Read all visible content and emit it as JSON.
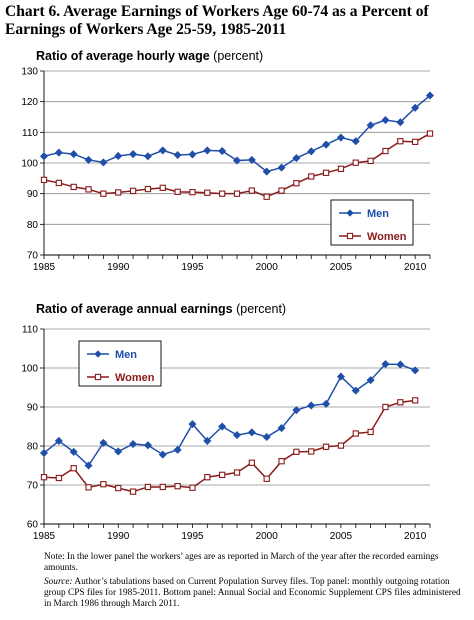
{
  "title": "Chart 6. Average Earnings of Workers Age 60-74 as a Percent of Earnings of Workers Age 25-59, 1985-2011",
  "colors": {
    "men": "#1f4fa8",
    "women": "#8b1a1a"
  },
  "chart_data": [
    {
      "type": "line",
      "title": "Ratio of average hourly wage",
      "title_unit": "(percent)",
      "x": [
        1985,
        1986,
        1987,
        1988,
        1989,
        1990,
        1991,
        1992,
        1993,
        1994,
        1995,
        1996,
        1997,
        1998,
        1999,
        2000,
        2001,
        2002,
        2003,
        2004,
        2005,
        2006,
        2007,
        2008,
        2009,
        2010,
        2011
      ],
      "xticks": [
        1985,
        1990,
        1995,
        2000,
        2005,
        2010
      ],
      "ylim": [
        70,
        130
      ],
      "yticks": [
        70,
        80,
        90,
        100,
        110,
        120,
        130
      ],
      "legend_position": "bottom-right",
      "series": [
        {
          "name": "Men",
          "marker": "filled-diamond",
          "values": [
            102.2,
            103.4,
            102.9,
            101.0,
            100.2,
            102.3,
            102.9,
            102.2,
            104.1,
            102.6,
            102.8,
            104.1,
            103.9,
            100.8,
            101.0,
            97.2,
            98.5,
            101.6,
            103.8,
            106.0,
            108.3,
            107.1,
            112.3,
            114.0,
            113.3,
            118.0,
            122.0
          ]
        },
        {
          "name": "Women",
          "marker": "hollow-square",
          "values": [
            94.5,
            93.5,
            92.2,
            91.4,
            90.0,
            90.4,
            90.9,
            91.5,
            91.9,
            90.6,
            90.5,
            90.3,
            90.0,
            90.0,
            91.0,
            89.0,
            91.0,
            93.4,
            95.6,
            96.8,
            98.1,
            100.1,
            100.7,
            103.9,
            107.1,
            106.9,
            109.6
          ]
        }
      ]
    },
    {
      "type": "line",
      "title": "Ratio of average annual earnings",
      "title_unit": "(percent)",
      "x": [
        1985,
        1986,
        1987,
        1988,
        1989,
        1990,
        1991,
        1992,
        1993,
        1994,
        1995,
        1996,
        1997,
        1998,
        1999,
        2000,
        2001,
        2002,
        2003,
        2004,
        2005,
        2006,
        2007,
        2008,
        2009,
        2010
      ],
      "xticks": [
        1985,
        1990,
        1995,
        2000,
        2005,
        2010
      ],
      "ylim": [
        60,
        110
      ],
      "yticks": [
        60,
        70,
        80,
        90,
        100,
        110
      ],
      "legend_position": "top-left",
      "series": [
        {
          "name": "Men",
          "marker": "filled-diamond",
          "values": [
            78.2,
            81.3,
            78.5,
            75.0,
            80.8,
            78.6,
            80.5,
            80.2,
            77.8,
            79.0,
            85.6,
            81.3,
            85.0,
            82.8,
            83.5,
            82.3,
            84.6,
            89.2,
            90.4,
            90.8,
            97.8,
            94.2,
            96.9,
            101.0,
            100.9,
            99.4
          ]
        },
        {
          "name": "Women",
          "marker": "hollow-square",
          "values": [
            72.0,
            71.8,
            74.3,
            69.4,
            70.2,
            69.2,
            68.3,
            69.5,
            69.5,
            69.7,
            69.3,
            72.0,
            72.6,
            73.2,
            75.7,
            71.6,
            76.1,
            78.5,
            78.6,
            79.8,
            80.1,
            83.2,
            83.6,
            90.0,
            91.2,
            91.7
          ]
        }
      ]
    }
  ],
  "notes": {
    "note": "Note:  In the lower panel the workers’ ages are as reported in March of the year after the recorded earnings amounts.",
    "source_label": "Source:",
    "source": "Author’s tabulations based on Current Population Survey files. Top panel:  monthly outgoing rotation group CPS files for 1985-2011. Bottom panel:  Annual Social and Economic Supplement CPS files administered in March 1986 through March 2011."
  }
}
